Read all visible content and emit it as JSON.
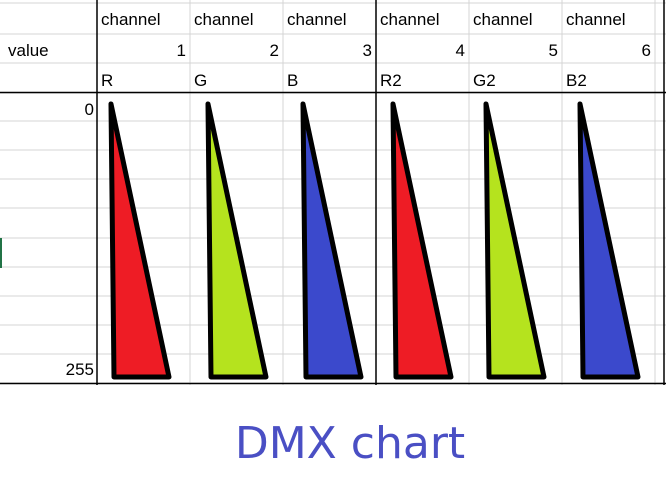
{
  "header": {
    "row1": [
      "channel",
      "channel",
      "channel",
      "channel",
      "channel",
      "channel"
    ],
    "row2_label": "value",
    "row2": [
      "1",
      "2",
      "3",
      "4",
      "5",
      "6"
    ],
    "row3": [
      "R",
      "G",
      "B",
      "R2",
      "G2",
      "B2"
    ]
  },
  "scale": {
    "min_label": "0",
    "max_label": "255"
  },
  "wedge_colors": [
    "#ee1c25",
    "#b5e31e",
    "#3b49cc",
    "#ee1c25",
    "#b5e31e",
    "#3b49cc"
  ],
  "footer": {
    "title": "DMX chart"
  }
}
